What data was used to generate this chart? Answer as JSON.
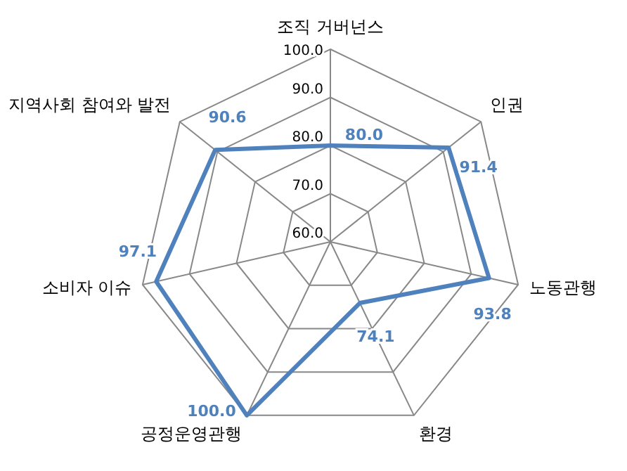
{
  "chart_data": {
    "type": "radar",
    "categories": [
      "조직 거버넌스",
      "인권",
      "노동관행",
      "환경",
      "공정운영관행",
      "소비자 이슈",
      "지역사회 참여와 발전"
    ],
    "series": [
      {
        "color": "#4f81bd",
        "values": [
          80.0,
          91.4,
          93.8,
          74.1,
          100.0,
          97.1,
          90.6
        ],
        "value_labels": [
          "80.0",
          "91.4",
          "93.8",
          "74.1",
          "100.0",
          "97.1",
          "90.6"
        ]
      }
    ],
    "ylim": [
      60,
      100
    ],
    "yticks": [
      {
        "value": 60,
        "label": "60.0"
      },
      {
        "value": 70,
        "label": "70.0"
      },
      {
        "value": 80,
        "label": "80.0"
      },
      {
        "value": 90,
        "label": "90.0"
      },
      {
        "value": 100,
        "label": "100.0"
      }
    ],
    "grid": true,
    "marker": "none"
  }
}
